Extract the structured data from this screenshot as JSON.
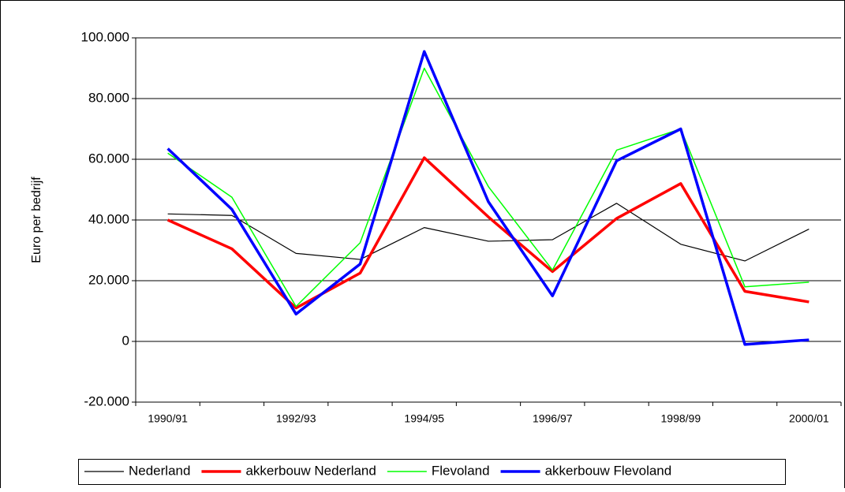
{
  "chart_data": {
    "type": "line",
    "y_label": "Euro per bedrijf",
    "categories": [
      "1990/91",
      null,
      "1992/93",
      null,
      "1994/95",
      null,
      "1996/97",
      null,
      "1998/99",
      null,
      "2000/01"
    ],
    "series": [
      {
        "name": "Nederland",
        "color": "#000000",
        "values": [
          42000,
          41500,
          29000,
          27000,
          37500,
          33000,
          33500,
          45500,
          32000,
          26500,
          37000
        ]
      },
      {
        "name": "akkerbouw Nederland",
        "color": "#ff0000",
        "values": [
          40000,
          30500,
          11000,
          22500,
          60500,
          41000,
          23000,
          40500,
          52000,
          16500,
          13000
        ]
      },
      {
        "name": "Flevoland",
        "color": "#00ff00",
        "values": [
          62000,
          47500,
          11500,
          32500,
          90000,
          51000,
          23500,
          63000,
          70000,
          18000,
          19500
        ]
      },
      {
        "name": "akkerbouw Flevoland",
        "color": "#0000ff",
        "values": [
          63500,
          43500,
          9000,
          25500,
          95500,
          46000,
          15000,
          59500,
          70000,
          -1000,
          500
        ]
      }
    ],
    "ylim": [
      -20000,
      100000
    ],
    "yticks": [
      {
        "value": -20000,
        "label": "-20.000"
      },
      0,
      {
        "value": 20000,
        "label": "20.000"
      },
      {
        "value": 40000,
        "label": "40.000"
      },
      {
        "value": 60000,
        "label": "60.000"
      },
      {
        "value": 80000,
        "label": "80.000"
      },
      {
        "value": 100000,
        "label": "100.000"
      }
    ],
    "grid": true,
    "legend": "bottom"
  }
}
